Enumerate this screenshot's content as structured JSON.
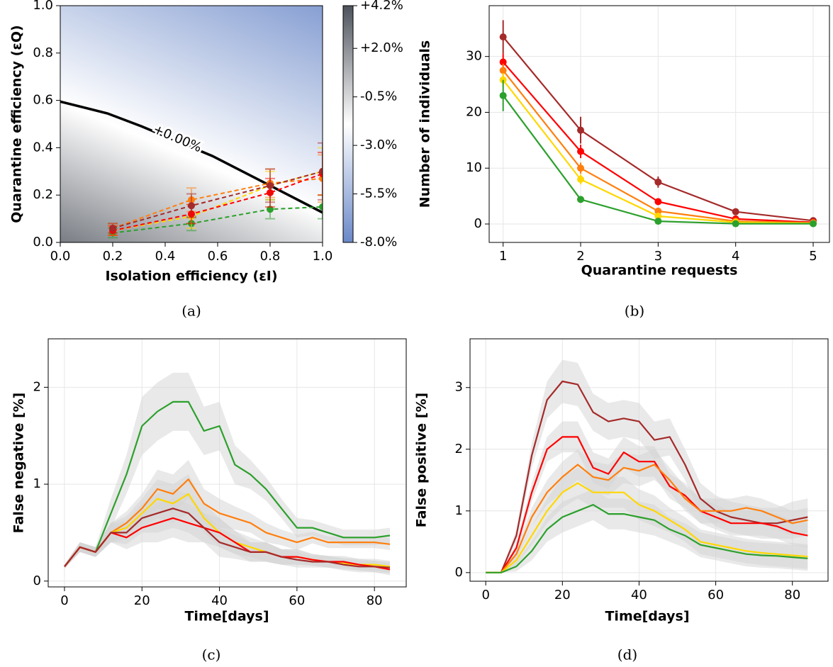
{
  "chart_data": [
    {
      "type": "contour_scatter",
      "caption": "(a)",
      "xlabel": "Isolation efficiency (εI)",
      "ylabel": "Quarantine efficiency (εQ)",
      "xlim": [
        0,
        1
      ],
      "ylim": [
        0,
        1
      ],
      "xticks": [
        {
          "value": 0,
          "label": "0.0"
        },
        {
          "value": 0.2,
          "label": "0.2"
        },
        {
          "value": 0.4,
          "label": "0.4"
        },
        {
          "value": 0.6,
          "label": "0.6"
        },
        {
          "value": 0.8,
          "label": "0.8"
        },
        {
          "value": 1,
          "label": "1.0"
        }
      ],
      "yticks": [
        {
          "value": 0,
          "label": "0.0"
        },
        {
          "value": 0.2,
          "label": "0.2"
        },
        {
          "value": 0.4,
          "label": "0.4"
        },
        {
          "value": 0.6,
          "label": "0.6"
        },
        {
          "value": 0.8,
          "label": "0.8"
        },
        {
          "value": 1,
          "label": "1.0"
        }
      ],
      "contour": {
        "label": "+0.00%",
        "color": "#000000",
        "x": [
          0,
          0.18,
          0.31,
          0.58,
          0.8,
          1.0
        ],
        "y": [
          0.595,
          0.545,
          0.49,
          0.365,
          0.24,
          0.126
        ]
      },
      "colorbar": {
        "colors": [
          "#6a88c8",
          "#ffffff",
          "#4d525b"
        ],
        "lim": [
          -8.0,
          4.2
        ],
        "ticks": [
          {
            "value": 4.2,
            "label": "+4.2%"
          },
          {
            "value": 2.0,
            "label": "+2.0%"
          },
          {
            "value": -0.5,
            "label": "-0.5%"
          },
          {
            "value": -3.0,
            "label": "-3.0%"
          },
          {
            "value": -5.5,
            "label": "-5.5%"
          },
          {
            "value": -8.0,
            "label": "-8.0%"
          }
        ]
      },
      "x": [
        0.2,
        0.5,
        0.8,
        1.0
      ],
      "series": [
        {
          "color": "#2ca02c",
          "values": [
            0.04,
            0.08,
            0.14,
            0.15
          ],
          "errors": [
            0.02,
            0.03,
            0.04,
            0.05
          ]
        },
        {
          "color": "#ffd700",
          "values": [
            0.05,
            0.11,
            0.24,
            0.3
          ],
          "errors": [
            0.02,
            0.05,
            0.06,
            0.1
          ]
        },
        {
          "color": "#ff7f0e",
          "values": [
            0.06,
            0.18,
            0.25,
            0.27
          ],
          "errors": [
            0.02,
            0.05,
            0.06,
            0.1
          ]
        },
        {
          "color": "#ff0000",
          "values": [
            0.05,
            0.12,
            0.21,
            0.29
          ],
          "errors": [
            0.02,
            0.04,
            0.06,
            0.09
          ]
        },
        {
          "color": "#a52a2a",
          "values": [
            0.06,
            0.155,
            0.24,
            0.3
          ],
          "errors": [
            0.02,
            0.05,
            0.07,
            0.12
          ]
        }
      ]
    },
    {
      "type": "line",
      "caption": "(b)",
      "error_style": "bars",
      "grid": true,
      "xlabel": "Quarantine requests",
      "ylabel": "Number of individuals",
      "xlim": [
        0.82,
        5.21
      ],
      "ylim": [
        -3.3,
        39.1
      ],
      "xticks": [
        1,
        2,
        3,
        4,
        5
      ],
      "yticks": [
        0,
        10,
        20,
        30
      ],
      "x": [
        1,
        2,
        3,
        4,
        5
      ],
      "series": [
        {
          "color": "#a52a2a",
          "values": [
            33.5,
            16.8,
            7.5,
            2.2,
            0.6
          ],
          "errors": [
            3,
            2.4,
            1,
            0.4,
            0.3
          ]
        },
        {
          "color": "#ff0000",
          "values": [
            29,
            13,
            4,
            0.9,
            0.3
          ],
          "errors": [
            1.5,
            1.2,
            0.6,
            0.3,
            0.2
          ]
        },
        {
          "color": "#ff7f0e",
          "values": [
            27.5,
            10,
            2.3,
            0.5,
            0.2
          ],
          "errors": [
            1.2,
            1,
            0.5,
            0.2,
            0.1
          ]
        },
        {
          "color": "#ffd700",
          "values": [
            25.8,
            8,
            1.4,
            0.3,
            0.1
          ],
          "errors": [
            1.2,
            0.9,
            0.4,
            0.2,
            0.1
          ]
        },
        {
          "color": "#2ca02c",
          "values": [
            23,
            4.4,
            0.5,
            0.05,
            0.05
          ],
          "errors": [
            2.8,
            0.6,
            0.3,
            0.1,
            0.1
          ]
        }
      ]
    },
    {
      "type": "line",
      "caption": "(c)",
      "error_style": "band",
      "band_color": "#d3d3d3",
      "grid": true,
      "xlabel": "Time[days]",
      "ylabel": "False negative [%]",
      "xlim": [
        -4.2,
        88.2
      ],
      "ylim": [
        -0.06,
        2.5
      ],
      "xticks": [
        0,
        20,
        40,
        60,
        80
      ],
      "yticks": [
        0,
        1,
        2
      ],
      "x": [
        0,
        4,
        8,
        12,
        16,
        20,
        24,
        28,
        32,
        36,
        40,
        44,
        48,
        52,
        56,
        60,
        64,
        68,
        72,
        76,
        80,
        84
      ],
      "series": [
        {
          "color": "#2ca02c",
          "values": [
            0.15,
            0.35,
            0.3,
            0.7,
            1.1,
            1.6,
            1.75,
            1.85,
            1.85,
            1.55,
            1.6,
            1.2,
            1.1,
            0.95,
            0.75,
            0.55,
            0.55,
            0.5,
            0.45,
            0.45,
            0.45,
            0.47
          ],
          "errors": [
            0.02,
            0.05,
            0.05,
            0.15,
            0.2,
            0.3,
            0.3,
            0.3,
            0.3,
            0.25,
            0.25,
            0.2,
            0.15,
            0.12,
            0.1,
            0.1,
            0.08,
            0.08,
            0.08,
            0.08,
            0.08,
            0.08
          ]
        },
        {
          "color": "#ff7f0e",
          "values": [
            0.15,
            0.35,
            0.3,
            0.5,
            0.6,
            0.75,
            0.95,
            0.9,
            1.05,
            0.8,
            0.7,
            0.65,
            0.6,
            0.5,
            0.45,
            0.4,
            0.45,
            0.4,
            0.4,
            0.4,
            0.4,
            0.38
          ],
          "errors": [
            0.02,
            0.05,
            0.05,
            0.1,
            0.12,
            0.15,
            0.2,
            0.2,
            0.2,
            0.15,
            0.15,
            0.12,
            0.1,
            0.1,
            0.08,
            0.08,
            0.06,
            0.06,
            0.06,
            0.06,
            0.06,
            0.06
          ]
        },
        {
          "color": "#ffd700",
          "values": [
            0.15,
            0.35,
            0.3,
            0.5,
            0.55,
            0.7,
            0.85,
            0.8,
            0.9,
            0.65,
            0.5,
            0.4,
            0.35,
            0.3,
            0.25,
            0.25,
            0.22,
            0.2,
            0.18,
            0.17,
            0.17,
            0.15
          ],
          "errors": [
            0.02,
            0.05,
            0.05,
            0.1,
            0.12,
            0.15,
            0.2,
            0.2,
            0.2,
            0.15,
            0.15,
            0.12,
            0.1,
            0.1,
            0.08,
            0.08,
            0.06,
            0.06,
            0.06,
            0.06,
            0.06,
            0.06
          ]
        },
        {
          "color": "#ff0000",
          "values": [
            0.15,
            0.35,
            0.3,
            0.5,
            0.45,
            0.55,
            0.6,
            0.65,
            0.6,
            0.55,
            0.5,
            0.4,
            0.3,
            0.3,
            0.25,
            0.25,
            0.22,
            0.2,
            0.2,
            0.17,
            0.15,
            0.12
          ],
          "errors": [
            0.02,
            0.05,
            0.05,
            0.1,
            0.12,
            0.15,
            0.2,
            0.2,
            0.2,
            0.15,
            0.15,
            0.12,
            0.1,
            0.1,
            0.08,
            0.08,
            0.06,
            0.06,
            0.06,
            0.06,
            0.06,
            0.06
          ]
        },
        {
          "color": "#a52a2a",
          "values": [
            0.15,
            0.35,
            0.3,
            0.5,
            0.5,
            0.65,
            0.7,
            0.75,
            0.7,
            0.55,
            0.4,
            0.35,
            0.3,
            0.3,
            0.25,
            0.22,
            0.2,
            0.2,
            0.17,
            0.15,
            0.15,
            0.14
          ],
          "errors": [
            0.02,
            0.05,
            0.05,
            0.1,
            0.12,
            0.15,
            0.2,
            0.2,
            0.2,
            0.15,
            0.15,
            0.12,
            0.1,
            0.1,
            0.08,
            0.08,
            0.06,
            0.06,
            0.06,
            0.06,
            0.06,
            0.06
          ]
        }
      ]
    },
    {
      "type": "line",
      "caption": "(d)",
      "error_style": "band",
      "band_color": "#d3d3d3",
      "grid": true,
      "xlabel": "Time[days]",
      "ylabel": "False positive [%]",
      "xlim": [
        -4.1,
        89.3
      ],
      "ylim": [
        -0.14,
        3.79
      ],
      "xticks": [
        0,
        20,
        40,
        60,
        80
      ],
      "yticks": [
        0,
        1,
        2,
        3
      ],
      "x": [
        0,
        4,
        8,
        12,
        16,
        20,
        24,
        28,
        32,
        36,
        40,
        44,
        48,
        52,
        56,
        60,
        64,
        68,
        72,
        76,
        80,
        84
      ],
      "series": [
        {
          "color": "#a52a2a",
          "values": [
            0,
            0,
            0.6,
            1.9,
            2.8,
            3.1,
            3.05,
            2.6,
            2.45,
            2.5,
            2.45,
            2.15,
            2.2,
            1.75,
            1.2,
            1.0,
            0.9,
            0.85,
            0.8,
            0.8,
            0.85,
            0.9
          ],
          "errors": [
            0,
            0,
            0.1,
            0.2,
            0.3,
            0.35,
            0.35,
            0.3,
            0.3,
            0.3,
            0.3,
            0.3,
            0.3,
            0.25,
            0.25,
            0.25,
            0.25,
            0.25,
            0.25,
            0.25,
            0.3,
            0.3
          ]
        },
        {
          "color": "#ff0000",
          "values": [
            0,
            0,
            0.4,
            1.3,
            2.0,
            2.2,
            2.2,
            1.7,
            1.6,
            1.95,
            1.8,
            1.8,
            1.4,
            1.25,
            1.0,
            0.9,
            0.8,
            0.8,
            0.8,
            0.75,
            0.65,
            0.6
          ],
          "errors": [
            0,
            0,
            0.08,
            0.15,
            0.2,
            0.25,
            0.25,
            0.25,
            0.25,
            0.25,
            0.25,
            0.25,
            0.2,
            0.2,
            0.2,
            0.2,
            0.2,
            0.2,
            0.2,
            0.2,
            0.2,
            0.2
          ]
        },
        {
          "color": "#ff7f0e",
          "values": [
            0,
            0,
            0.3,
            0.9,
            1.3,
            1.55,
            1.75,
            1.55,
            1.5,
            1.7,
            1.65,
            1.75,
            1.5,
            1.2,
            1.0,
            1.0,
            1.0,
            1.05,
            1.0,
            0.9,
            0.8,
            0.85
          ],
          "errors": [
            0,
            0,
            0.08,
            0.15,
            0.2,
            0.25,
            0.25,
            0.25,
            0.25,
            0.25,
            0.25,
            0.25,
            0.2,
            0.2,
            0.2,
            0.2,
            0.2,
            0.2,
            0.2,
            0.2,
            0.2,
            0.2
          ]
        },
        {
          "color": "#ffd700",
          "values": [
            0,
            0,
            0.2,
            0.6,
            1.0,
            1.3,
            1.45,
            1.3,
            1.3,
            1.3,
            1.1,
            1.0,
            0.85,
            0.7,
            0.5,
            0.45,
            0.4,
            0.35,
            0.32,
            0.3,
            0.28,
            0.26
          ],
          "errors": [
            0,
            0,
            0.08,
            0.15,
            0.2,
            0.25,
            0.25,
            0.25,
            0.25,
            0.25,
            0.25,
            0.25,
            0.2,
            0.2,
            0.2,
            0.2,
            0.2,
            0.2,
            0.2,
            0.2,
            0.2,
            0.2
          ]
        },
        {
          "color": "#2ca02c",
          "values": [
            0,
            0,
            0.1,
            0.35,
            0.7,
            0.9,
            1.0,
            1.1,
            0.95,
            0.95,
            0.9,
            0.85,
            0.7,
            0.6,
            0.45,
            0.4,
            0.35,
            0.3,
            0.28,
            0.27,
            0.25,
            0.23
          ],
          "errors": [
            0,
            0,
            0.08,
            0.15,
            0.2,
            0.25,
            0.25,
            0.25,
            0.25,
            0.25,
            0.25,
            0.25,
            0.2,
            0.2,
            0.2,
            0.2,
            0.2,
            0.2,
            0.2,
            0.2,
            0.2,
            0.2
          ]
        }
      ]
    }
  ]
}
